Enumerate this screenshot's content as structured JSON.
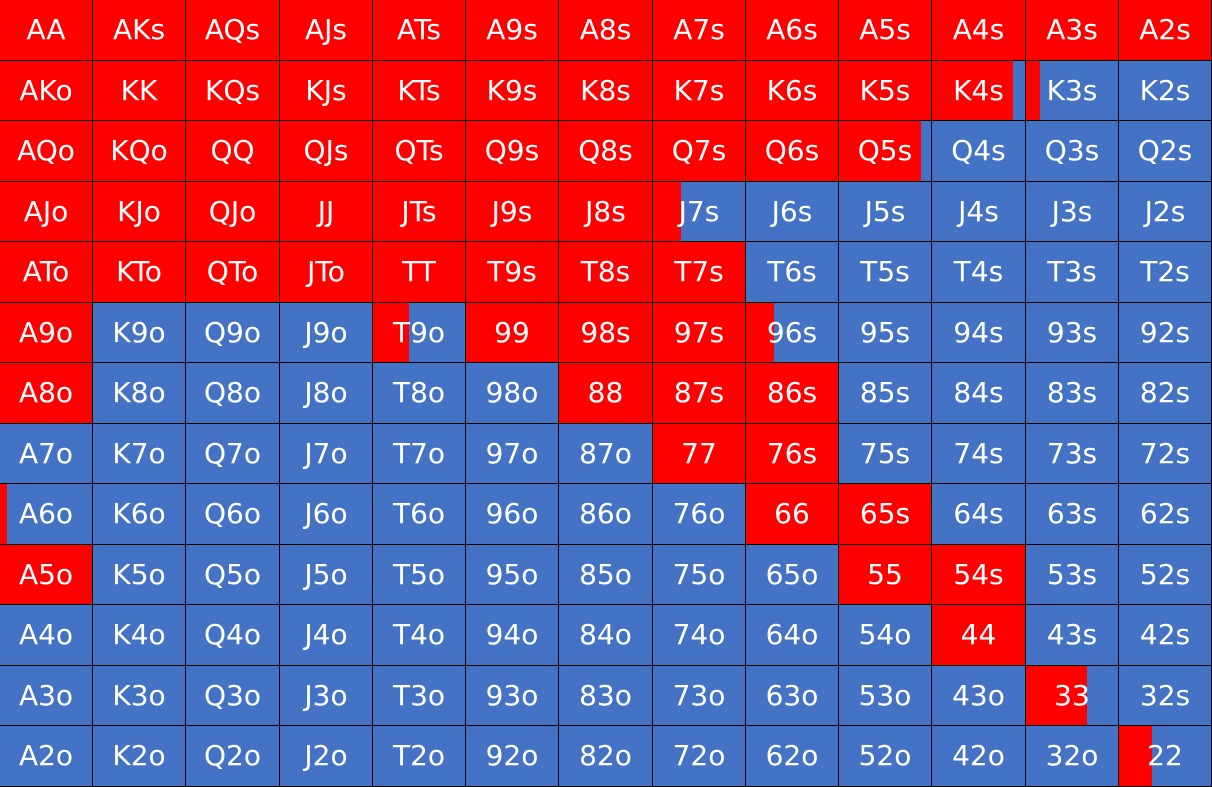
{
  "colors": {
    "raise": "#ff0000",
    "fold": "#4472c4",
    "grid_line": "#000000",
    "text": "#ffffff"
  },
  "rows": [
    [
      {
        "label": "AA",
        "raise": 1
      },
      {
        "label": "AKs",
        "raise": 1
      },
      {
        "label": "AQs",
        "raise": 1
      },
      {
        "label": "AJs",
        "raise": 1
      },
      {
        "label": "ATs",
        "raise": 1
      },
      {
        "label": "A9s",
        "raise": 1
      },
      {
        "label": "A8s",
        "raise": 1
      },
      {
        "label": "A7s",
        "raise": 1
      },
      {
        "label": "A6s",
        "raise": 1
      },
      {
        "label": "A5s",
        "raise": 1
      },
      {
        "label": "A4s",
        "raise": 1
      },
      {
        "label": "A3s",
        "raise": 1
      },
      {
        "label": "A2s",
        "raise": 1
      }
    ],
    [
      {
        "label": "AKo",
        "raise": 1
      },
      {
        "label": "KK",
        "raise": 1
      },
      {
        "label": "KQs",
        "raise": 1
      },
      {
        "label": "KJs",
        "raise": 1
      },
      {
        "label": "KTs",
        "raise": 1
      },
      {
        "label": "K9s",
        "raise": 1
      },
      {
        "label": "K8s",
        "raise": 1
      },
      {
        "label": "K7s",
        "raise": 1
      },
      {
        "label": "K6s",
        "raise": 1
      },
      {
        "label": "K5s",
        "raise": 1
      },
      {
        "label": "K4s",
        "raise": 0.87
      },
      {
        "label": "K3s",
        "raise": 0.15
      },
      {
        "label": "K2s",
        "raise": 0
      }
    ],
    [
      {
        "label": "AQo",
        "raise": 1
      },
      {
        "label": "KQo",
        "raise": 1
      },
      {
        "label": "QQ",
        "raise": 1
      },
      {
        "label": "QJs",
        "raise": 1
      },
      {
        "label": "QTs",
        "raise": 1
      },
      {
        "label": "Q9s",
        "raise": 1
      },
      {
        "label": "Q8s",
        "raise": 1
      },
      {
        "label": "Q7s",
        "raise": 1
      },
      {
        "label": "Q6s",
        "raise": 1
      },
      {
        "label": "Q5s",
        "raise": 0.89
      },
      {
        "label": "Q4s",
        "raise": 0
      },
      {
        "label": "Q3s",
        "raise": 0
      },
      {
        "label": "Q2s",
        "raise": 0
      }
    ],
    [
      {
        "label": "AJo",
        "raise": 1
      },
      {
        "label": "KJo",
        "raise": 1
      },
      {
        "label": "QJo",
        "raise": 1
      },
      {
        "label": "JJ",
        "raise": 1
      },
      {
        "label": "JTs",
        "raise": 1
      },
      {
        "label": "J9s",
        "raise": 1
      },
      {
        "label": "J8s",
        "raise": 1
      },
      {
        "label": "J7s",
        "raise": 0.3
      },
      {
        "label": "J6s",
        "raise": 0
      },
      {
        "label": "J5s",
        "raise": 0
      },
      {
        "label": "J4s",
        "raise": 0
      },
      {
        "label": "J3s",
        "raise": 0
      },
      {
        "label": "J2s",
        "raise": 0
      }
    ],
    [
      {
        "label": "ATo",
        "raise": 1
      },
      {
        "label": "KTo",
        "raise": 1
      },
      {
        "label": "QTo",
        "raise": 1
      },
      {
        "label": "JTo",
        "raise": 1
      },
      {
        "label": "TT",
        "raise": 1
      },
      {
        "label": "T9s",
        "raise": 1
      },
      {
        "label": "T8s",
        "raise": 1
      },
      {
        "label": "T7s",
        "raise": 1
      },
      {
        "label": "T6s",
        "raise": 0
      },
      {
        "label": "T5s",
        "raise": 0
      },
      {
        "label": "T4s",
        "raise": 0
      },
      {
        "label": "T3s",
        "raise": 0
      },
      {
        "label": "T2s",
        "raise": 0
      }
    ],
    [
      {
        "label": "A9o",
        "raise": 1
      },
      {
        "label": "K9o",
        "raise": 0
      },
      {
        "label": "Q9o",
        "raise": 0
      },
      {
        "label": "J9o",
        "raise": 0
      },
      {
        "label": "T9o",
        "raise": 0.39
      },
      {
        "label": "99",
        "raise": 1
      },
      {
        "label": "98s",
        "raise": 1
      },
      {
        "label": "97s",
        "raise": 1
      },
      {
        "label": "96s",
        "raise": 0.3
      },
      {
        "label": "95s",
        "raise": 0
      },
      {
        "label": "94s",
        "raise": 0
      },
      {
        "label": "93s",
        "raise": 0
      },
      {
        "label": "92s",
        "raise": 0
      }
    ],
    [
      {
        "label": "A8o",
        "raise": 1
      },
      {
        "label": "K8o",
        "raise": 0
      },
      {
        "label": "Q8o",
        "raise": 0
      },
      {
        "label": "J8o",
        "raise": 0
      },
      {
        "label": "T8o",
        "raise": 0
      },
      {
        "label": "98o",
        "raise": 0
      },
      {
        "label": "88",
        "raise": 1
      },
      {
        "label": "87s",
        "raise": 1
      },
      {
        "label": "86s",
        "raise": 1
      },
      {
        "label": "85s",
        "raise": 0
      },
      {
        "label": "84s",
        "raise": 0
      },
      {
        "label": "83s",
        "raise": 0
      },
      {
        "label": "82s",
        "raise": 0
      }
    ],
    [
      {
        "label": "A7o",
        "raise": 0
      },
      {
        "label": "K7o",
        "raise": 0
      },
      {
        "label": "Q7o",
        "raise": 0
      },
      {
        "label": "J7o",
        "raise": 0
      },
      {
        "label": "T7o",
        "raise": 0
      },
      {
        "label": "97o",
        "raise": 0
      },
      {
        "label": "87o",
        "raise": 0
      },
      {
        "label": "77",
        "raise": 1
      },
      {
        "label": "76s",
        "raise": 1
      },
      {
        "label": "75s",
        "raise": 0
      },
      {
        "label": "74s",
        "raise": 0
      },
      {
        "label": "73s",
        "raise": 0
      },
      {
        "label": "72s",
        "raise": 0
      }
    ],
    [
      {
        "label": "A6o",
        "raise": 0.08
      },
      {
        "label": "K6o",
        "raise": 0
      },
      {
        "label": "Q6o",
        "raise": 0
      },
      {
        "label": "J6o",
        "raise": 0
      },
      {
        "label": "T6o",
        "raise": 0
      },
      {
        "label": "96o",
        "raise": 0
      },
      {
        "label": "86o",
        "raise": 0
      },
      {
        "label": "76o",
        "raise": 0
      },
      {
        "label": "66",
        "raise": 1
      },
      {
        "label": "65s",
        "raise": 1
      },
      {
        "label": "64s",
        "raise": 0
      },
      {
        "label": "63s",
        "raise": 0
      },
      {
        "label": "62s",
        "raise": 0
      }
    ],
    [
      {
        "label": "A5o",
        "raise": 1
      },
      {
        "label": "K5o",
        "raise": 0
      },
      {
        "label": "Q5o",
        "raise": 0
      },
      {
        "label": "J5o",
        "raise": 0
      },
      {
        "label": "T5o",
        "raise": 0
      },
      {
        "label": "95o",
        "raise": 0
      },
      {
        "label": "85o",
        "raise": 0
      },
      {
        "label": "75o",
        "raise": 0
      },
      {
        "label": "65o",
        "raise": 0
      },
      {
        "label": "55",
        "raise": 1
      },
      {
        "label": "54s",
        "raise": 1
      },
      {
        "label": "53s",
        "raise": 0
      },
      {
        "label": "52s",
        "raise": 0
      }
    ],
    [
      {
        "label": "A4o",
        "raise": 0
      },
      {
        "label": "K4o",
        "raise": 0
      },
      {
        "label": "Q4o",
        "raise": 0
      },
      {
        "label": "J4o",
        "raise": 0
      },
      {
        "label": "T4o",
        "raise": 0
      },
      {
        "label": "94o",
        "raise": 0
      },
      {
        "label": "84o",
        "raise": 0
      },
      {
        "label": "74o",
        "raise": 0
      },
      {
        "label": "64o",
        "raise": 0
      },
      {
        "label": "54o",
        "raise": 0
      },
      {
        "label": "44",
        "raise": 1
      },
      {
        "label": "43s",
        "raise": 0
      },
      {
        "label": "42s",
        "raise": 0
      }
    ],
    [
      {
        "label": "A3o",
        "raise": 0
      },
      {
        "label": "K3o",
        "raise": 0
      },
      {
        "label": "Q3o",
        "raise": 0
      },
      {
        "label": "J3o",
        "raise": 0
      },
      {
        "label": "T3o",
        "raise": 0
      },
      {
        "label": "93o",
        "raise": 0
      },
      {
        "label": "83o",
        "raise": 0
      },
      {
        "label": "73o",
        "raise": 0
      },
      {
        "label": "63o",
        "raise": 0
      },
      {
        "label": "53o",
        "raise": 0
      },
      {
        "label": "43o",
        "raise": 0
      },
      {
        "label": "33",
        "raise": 0.66
      },
      {
        "label": "32s",
        "raise": 0
      }
    ],
    [
      {
        "label": "A2o",
        "raise": 0
      },
      {
        "label": "K2o",
        "raise": 0
      },
      {
        "label": "Q2o",
        "raise": 0
      },
      {
        "label": "J2o",
        "raise": 0
      },
      {
        "label": "T2o",
        "raise": 0
      },
      {
        "label": "92o",
        "raise": 0
      },
      {
        "label": "82o",
        "raise": 0
      },
      {
        "label": "72o",
        "raise": 0
      },
      {
        "label": "62o",
        "raise": 0
      },
      {
        "label": "52o",
        "raise": 0
      },
      {
        "label": "42o",
        "raise": 0
      },
      {
        "label": "32o",
        "raise": 0
      },
      {
        "label": "22",
        "raise": 0.36
      }
    ]
  ]
}
